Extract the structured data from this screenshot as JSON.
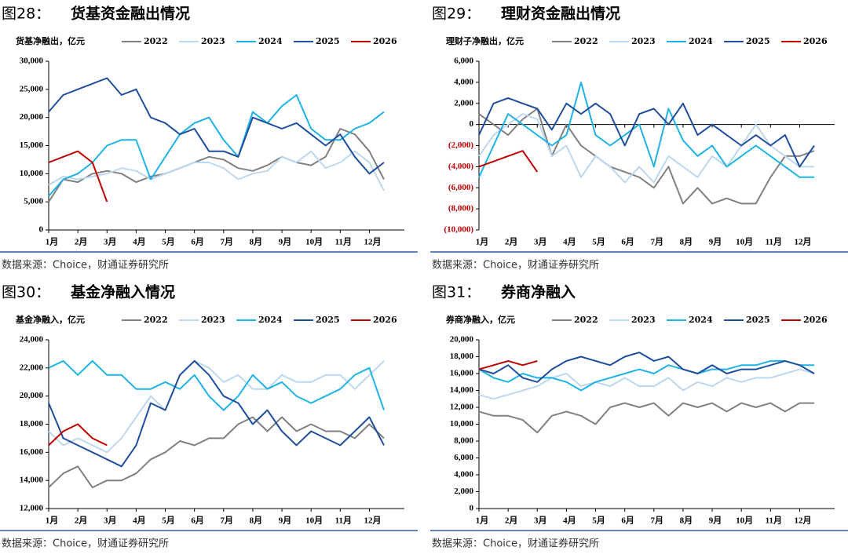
{
  "chart_data": [
    {
      "type": "line",
      "figure_label": "图28：",
      "title": "货基资金融出情况",
      "ylabel": "货基净融出，亿元",
      "source": "数据来源：Choice，财通证券研究所",
      "x": [
        1,
        1.5,
        2,
        2.5,
        3,
        3.5,
        4,
        4.5,
        5,
        5.5,
        6,
        6.5,
        7,
        7.5,
        8,
        8.5,
        9,
        9.5,
        10,
        10.5,
        11,
        11.5,
        12,
        12.5
      ],
      "xlim": [
        1,
        13.2
      ],
      "xticks": [
        {
          "value": 1,
          "label": "1月"
        },
        {
          "value": 2,
          "label": "2月"
        },
        {
          "value": 3,
          "label": "3月"
        },
        {
          "value": 4,
          "label": "4月"
        },
        {
          "value": 5,
          "label": "5月"
        },
        {
          "value": 6,
          "label": "6月"
        },
        {
          "value": 7,
          "label": "7月"
        },
        {
          "value": 8,
          "label": "8月"
        },
        {
          "value": 9,
          "label": "9月"
        },
        {
          "value": 10,
          "label": "10月"
        },
        {
          "value": 11,
          "label": "11月"
        },
        {
          "value": 12,
          "label": "12月"
        }
      ],
      "ylim": [
        0,
        30000
      ],
      "yticks": [
        0,
        {
          "value": 5000,
          "label": "5,000"
        },
        {
          "value": 10000,
          "label": "10,000"
        },
        {
          "value": 15000,
          "label": "15,000"
        },
        {
          "value": 20000,
          "label": "20,000"
        },
        {
          "value": 25000,
          "label": "25,000"
        },
        {
          "value": 30000,
          "label": "30,000"
        }
      ],
      "series": [
        {
          "name": "2022",
          "color": "#808080",
          "values": [
            5000,
            9000,
            8500,
            10000,
            10500,
            10000,
            8500,
            9500,
            10000,
            11000,
            12000,
            13000,
            12500,
            11000,
            10500,
            11500,
            13000,
            12000,
            11500,
            13000,
            18000,
            17000,
            14000,
            9000
          ]
        },
        {
          "name": "2023",
          "color": "#bdd7ee",
          "values": [
            8000,
            9500,
            9000,
            9500,
            10000,
            11000,
            10500,
            9000,
            10000,
            11000,
            12000,
            12000,
            11000,
            9000,
            10000,
            10500,
            13000,
            12000,
            14000,
            11000,
            12000,
            14000,
            12000,
            7000
          ]
        },
        {
          "name": "2024",
          "color": "#1fb2e6",
          "values": [
            6000,
            9000,
            10000,
            12000,
            15000,
            16000,
            16000,
            9000,
            13000,
            17000,
            19000,
            20000,
            16000,
            13000,
            21000,
            19000,
            22000,
            24000,
            18000,
            16000,
            16000,
            18000,
            19000,
            21000
          ]
        },
        {
          "name": "2025",
          "color": "#1f4e9c",
          "values": [
            21000,
            24000,
            25000,
            26000,
            27000,
            24000,
            25000,
            20000,
            19000,
            17000,
            18000,
            14000,
            14000,
            13000,
            20000,
            19000,
            18000,
            19000,
            17000,
            15000,
            17000,
            13000,
            10000,
            12000
          ]
        },
        {
          "name": "2026",
          "color": "#c00000",
          "values": [
            12000,
            13000,
            14000,
            12000,
            5000,
            null,
            null,
            null,
            null,
            null,
            null,
            null,
            null,
            null,
            null,
            null,
            null,
            null,
            null,
            null,
            null,
            null,
            null,
            null
          ]
        }
      ]
    },
    {
      "type": "line",
      "figure_label": "图29：",
      "title": "理财资金融出情况",
      "ylabel": "理财子净融出，亿元",
      "source": "数据来源：Choice，财通证券研究所",
      "x": [
        1,
        1.5,
        2,
        2.5,
        3,
        3.5,
        4,
        4.5,
        5,
        5.5,
        6,
        6.5,
        7,
        7.5,
        8,
        8.5,
        9,
        9.5,
        10,
        10.5,
        11,
        11.5,
        12,
        12.5
      ],
      "xlim": [
        1,
        13.2
      ],
      "xticks": [
        {
          "value": 1,
          "label": "1月"
        },
        {
          "value": 2,
          "label": "2月"
        },
        {
          "value": 3,
          "label": "3月"
        },
        {
          "value": 4,
          "label": "4月"
        },
        {
          "value": 5,
          "label": "5月"
        },
        {
          "value": 6,
          "label": "6月"
        },
        {
          "value": 7,
          "label": "7月"
        },
        {
          "value": 8,
          "label": "8月"
        },
        {
          "value": 9,
          "label": "9月"
        },
        {
          "value": 10,
          "label": "10月"
        },
        {
          "value": 11,
          "label": "11月"
        },
        {
          "value": 12,
          "label": "12月"
        }
      ],
      "ylim": [
        -10000,
        6000
      ],
      "negative_tick_color": "#c00000",
      "yticks": [
        {
          "value": -10000,
          "label": "(10,000)"
        },
        {
          "value": -8000,
          "label": "(8,000)"
        },
        {
          "value": -6000,
          "label": "(6,000)"
        },
        {
          "value": -4000,
          "label": "(4,000)"
        },
        {
          "value": -2000,
          "label": "(2,000)"
        },
        0,
        {
          "value": 2000,
          "label": "2,000"
        },
        {
          "value": 4000,
          "label": "4,000"
        },
        {
          "value": 6000,
          "label": "6,000"
        }
      ],
      "series": [
        {
          "name": "2022",
          "color": "#808080",
          "values": [
            1000,
            0,
            -1000,
            500,
            1500,
            -3000,
            0,
            -2000,
            -3000,
            -4000,
            -4500,
            -5000,
            -6000,
            -4000,
            -7500,
            -6000,
            -7500,
            -7000,
            -7500,
            -7500,
            -5000,
            -3000,
            -3000,
            -2500
          ]
        },
        {
          "name": "2023",
          "color": "#bdd7ee",
          "values": [
            -3000,
            -1000,
            0,
            1000,
            500,
            -3000,
            -2000,
            -5000,
            -3000,
            -4000,
            -5500,
            -4000,
            -5500,
            -3000,
            -4000,
            -5000,
            -3000,
            -4000,
            -2000,
            0,
            -2000,
            -3000,
            -4000,
            -4000
          ]
        },
        {
          "name": "2024",
          "color": "#1fb2e6",
          "values": [
            -5000,
            -2000,
            1000,
            0,
            -1000,
            -2000,
            -1000,
            4000,
            -1000,
            -2000,
            -1000,
            0,
            -4000,
            1500,
            -1500,
            -3000,
            -2000,
            -4000,
            -3000,
            -2000,
            -3000,
            -4000,
            -5000,
            -5000
          ]
        },
        {
          "name": "2025",
          "color": "#1f4e9c",
          "values": [
            -1000,
            2000,
            2500,
            2000,
            1500,
            -500,
            2000,
            1000,
            2000,
            1000,
            -2000,
            1000,
            1500,
            0,
            2000,
            -1000,
            0,
            -1000,
            -2000,
            -1000,
            -2000,
            -1000,
            -4000,
            -2000
          ]
        },
        {
          "name": "2026",
          "color": "#c00000",
          "values": [
            -4000,
            -3500,
            -3000,
            -2500,
            -4500,
            null,
            null,
            null,
            null,
            null,
            null,
            null,
            null,
            null,
            null,
            null,
            null,
            null,
            null,
            null,
            null,
            null,
            null,
            null
          ]
        }
      ]
    },
    {
      "type": "line",
      "figure_label": "图30：",
      "title": "基金净融入情况",
      "ylabel": "基金净融入，亿元",
      "source": "数据来源：Choice，财通证券研究所",
      "x": [
        1,
        1.5,
        2,
        2.5,
        3,
        3.5,
        4,
        4.5,
        5,
        5.5,
        6,
        6.5,
        7,
        7.5,
        8,
        8.5,
        9,
        9.5,
        10,
        10.5,
        11,
        11.5,
        12,
        12.5
      ],
      "xlim": [
        1,
        13.2
      ],
      "xticks": [
        {
          "value": 1,
          "label": "1月"
        },
        {
          "value": 2,
          "label": "2月"
        },
        {
          "value": 3,
          "label": "3月"
        },
        {
          "value": 4,
          "label": "4月"
        },
        {
          "value": 5,
          "label": "5月"
        },
        {
          "value": 6,
          "label": "6月"
        },
        {
          "value": 7,
          "label": "7月"
        },
        {
          "value": 8,
          "label": "8月"
        },
        {
          "value": 9,
          "label": "9月"
        },
        {
          "value": 10,
          "label": "10月"
        },
        {
          "value": 11,
          "label": "11月"
        },
        {
          "value": 12,
          "label": "12月"
        }
      ],
      "ylim": [
        12000,
        24000
      ],
      "yticks": [
        {
          "value": 12000,
          "label": "12,000"
        },
        {
          "value": 14000,
          "label": "14,000"
        },
        {
          "value": 16000,
          "label": "16,000"
        },
        {
          "value": 18000,
          "label": "18,000"
        },
        {
          "value": 20000,
          "label": "20,000"
        },
        {
          "value": 22000,
          "label": "22,000"
        },
        {
          "value": 24000,
          "label": "24,000"
        }
      ],
      "series": [
        {
          "name": "2022",
          "color": "#808080",
          "values": [
            13500,
            14500,
            15000,
            13500,
            14000,
            14000,
            14500,
            15500,
            16000,
            16800,
            16500,
            17000,
            17000,
            18000,
            18500,
            17500,
            18500,
            17500,
            18000,
            17500,
            17500,
            17000,
            18000,
            17000
          ]
        },
        {
          "name": "2023",
          "color": "#bdd7ee",
          "values": [
            17500,
            16500,
            17000,
            16500,
            16000,
            17000,
            18500,
            20000,
            19000,
            21500,
            22500,
            22000,
            21000,
            21500,
            20500,
            20500,
            21500,
            21000,
            21000,
            21500,
            21500,
            20500,
            21500,
            22500
          ]
        },
        {
          "name": "2024",
          "color": "#1fb2e6",
          "values": [
            22000,
            22500,
            21500,
            22500,
            21500,
            21500,
            20500,
            20500,
            21000,
            20500,
            21500,
            20000,
            19000,
            20000,
            21500,
            20500,
            21000,
            20000,
            19500,
            20000,
            20500,
            21500,
            22000,
            19000
          ]
        },
        {
          "name": "2025",
          "color": "#1f4e9c",
          "values": [
            19500,
            17000,
            16500,
            16000,
            15500,
            15000,
            16500,
            19500,
            19000,
            21500,
            22500,
            21500,
            20000,
            19500,
            18000,
            19000,
            17500,
            16500,
            17500,
            17000,
            16500,
            17500,
            18500,
            16500
          ]
        },
        {
          "name": "2026",
          "color": "#c00000",
          "values": [
            16500,
            17500,
            18000,
            17000,
            16500,
            null,
            null,
            null,
            null,
            null,
            null,
            null,
            null,
            null,
            null,
            null,
            null,
            null,
            null,
            null,
            null,
            null,
            null,
            null
          ]
        }
      ]
    },
    {
      "type": "line",
      "figure_label": "图31：",
      "title": "券商净融入",
      "ylabel": "券商净融入，亿元",
      "source": "数据来源：Choice，财通证券研究所",
      "x": [
        1,
        1.5,
        2,
        2.5,
        3,
        3.5,
        4,
        4.5,
        5,
        5.5,
        6,
        6.5,
        7,
        7.5,
        8,
        8.5,
        9,
        9.5,
        10,
        10.5,
        11,
        11.5,
        12,
        12.5
      ],
      "xlim": [
        1,
        13.2
      ],
      "xticks": [
        {
          "value": 1,
          "label": "1月"
        },
        {
          "value": 2,
          "label": "2月"
        },
        {
          "value": 3,
          "label": "3月"
        },
        {
          "value": 4,
          "label": "4月"
        },
        {
          "value": 5,
          "label": "5月"
        },
        {
          "value": 6,
          "label": "6月"
        },
        {
          "value": 7,
          "label": "7月"
        },
        {
          "value": 8,
          "label": "8月"
        },
        {
          "value": 9,
          "label": "9月"
        },
        {
          "value": 10,
          "label": "10月"
        },
        {
          "value": 11,
          "label": "11月"
        },
        {
          "value": 12,
          "label": "12月"
        }
      ],
      "ylim": [
        0,
        20000
      ],
      "yticks": [
        0,
        {
          "value": 2000,
          "label": "2,000"
        },
        {
          "value": 4000,
          "label": "4,000"
        },
        {
          "value": 6000,
          "label": "6,000"
        },
        {
          "value": 8000,
          "label": "8,000"
        },
        {
          "value": 10000,
          "label": "10,000"
        },
        {
          "value": 12000,
          "label": "12,000"
        },
        {
          "value": 14000,
          "label": "14,000"
        },
        {
          "value": 16000,
          "label": "16,000"
        },
        {
          "value": 18000,
          "label": "18,000"
        },
        {
          "value": 20000,
          "label": "20,000"
        }
      ],
      "series": [
        {
          "name": "2022",
          "color": "#808080",
          "values": [
            11500,
            11000,
            11000,
            10500,
            9000,
            11000,
            11500,
            11000,
            10000,
            12000,
            12500,
            12000,
            12500,
            11000,
            12500,
            12000,
            12500,
            11500,
            12500,
            12000,
            12500,
            11500,
            12500,
            12500
          ]
        },
        {
          "name": "2023",
          "color": "#bdd7ee",
          "values": [
            13500,
            13000,
            13500,
            14000,
            14500,
            15500,
            16000,
            14500,
            15000,
            14500,
            15500,
            14500,
            14500,
            15500,
            14000,
            15000,
            14500,
            15500,
            15000,
            15500,
            15500,
            16000,
            16500,
            16000
          ]
        },
        {
          "name": "2024",
          "color": "#1fb2e6",
          "values": [
            16500,
            15500,
            15000,
            16000,
            15500,
            15500,
            15000,
            14000,
            15000,
            15500,
            16000,
            16500,
            16000,
            17000,
            16500,
            16000,
            16500,
            16500,
            17000,
            17000,
            17500,
            17500,
            17000,
            17000
          ]
        },
        {
          "name": "2025",
          "color": "#1f4e9c",
          "values": [
            16500,
            16000,
            17000,
            15500,
            15000,
            16500,
            17500,
            18000,
            17500,
            17000,
            18000,
            18500,
            17500,
            18000,
            16500,
            16000,
            17000,
            16000,
            16500,
            16500,
            17000,
            17500,
            17000,
            16000
          ]
        },
        {
          "name": "2026",
          "color": "#c00000",
          "values": [
            16500,
            17000,
            17500,
            17000,
            17500,
            null,
            null,
            null,
            null,
            null,
            null,
            null,
            null,
            null,
            null,
            null,
            null,
            null,
            null,
            null,
            null,
            null,
            null,
            null
          ]
        }
      ]
    }
  ]
}
